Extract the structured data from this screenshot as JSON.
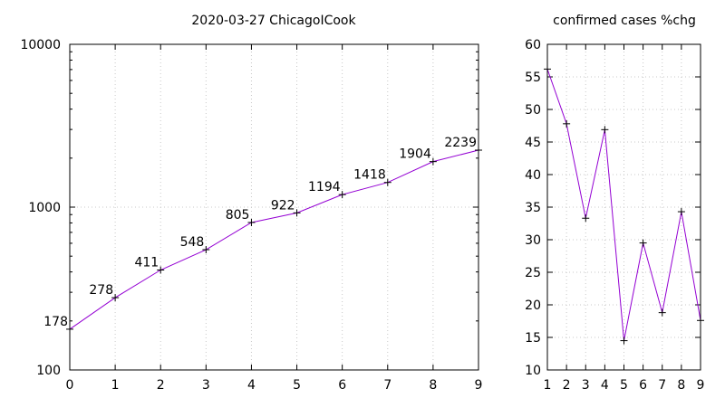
{
  "chart_data": [
    {
      "type": "line",
      "title": "2020-03-27 ChicagoICook",
      "x": [
        0,
        1,
        2,
        3,
        4,
        5,
        6,
        7,
        8,
        9
      ],
      "series": [
        {
          "values": [
            178,
            278,
            411,
            548,
            805,
            922,
            1194,
            1418,
            1904,
            2239
          ]
        }
      ],
      "data_labels": [
        "178",
        "278",
        "411",
        "548",
        "805",
        "922",
        "1194",
        "1418",
        "1904",
        "2239"
      ],
      "xlim": [
        0,
        9
      ],
      "ylim": [
        100,
        10000
      ],
      "yscale": "log",
      "x_ticks": [
        "0",
        "1",
        "2",
        "3",
        "4",
        "5",
        "6",
        "7",
        "8",
        "9"
      ],
      "y_ticks": [
        {
          "value": 100,
          "label": "100"
        },
        {
          "value": 1000,
          "label": "1000"
        },
        {
          "value": 10000,
          "label": "10000"
        }
      ],
      "grid": true,
      "line_color": "#9400d3",
      "marker": "plus"
    },
    {
      "type": "line",
      "title": "confirmed cases %chg",
      "x": [
        1,
        2,
        3,
        4,
        5,
        6,
        7,
        8,
        9
      ],
      "series": [
        {
          "values": [
            56.2,
            47.8,
            33.3,
            46.9,
            14.5,
            29.5,
            18.8,
            34.3,
            17.6
          ]
        }
      ],
      "xlim": [
        1,
        9
      ],
      "ylim": [
        10,
        60
      ],
      "x_ticks": [
        "1",
        "2",
        "3",
        "4",
        "5",
        "6",
        "7",
        "8",
        "9"
      ],
      "y_ticks": [
        "10",
        "15",
        "20",
        "25",
        "30",
        "35",
        "40",
        "45",
        "50",
        "55",
        "60"
      ],
      "grid": true,
      "line_color": "#9400d3",
      "marker": "plus"
    }
  ]
}
